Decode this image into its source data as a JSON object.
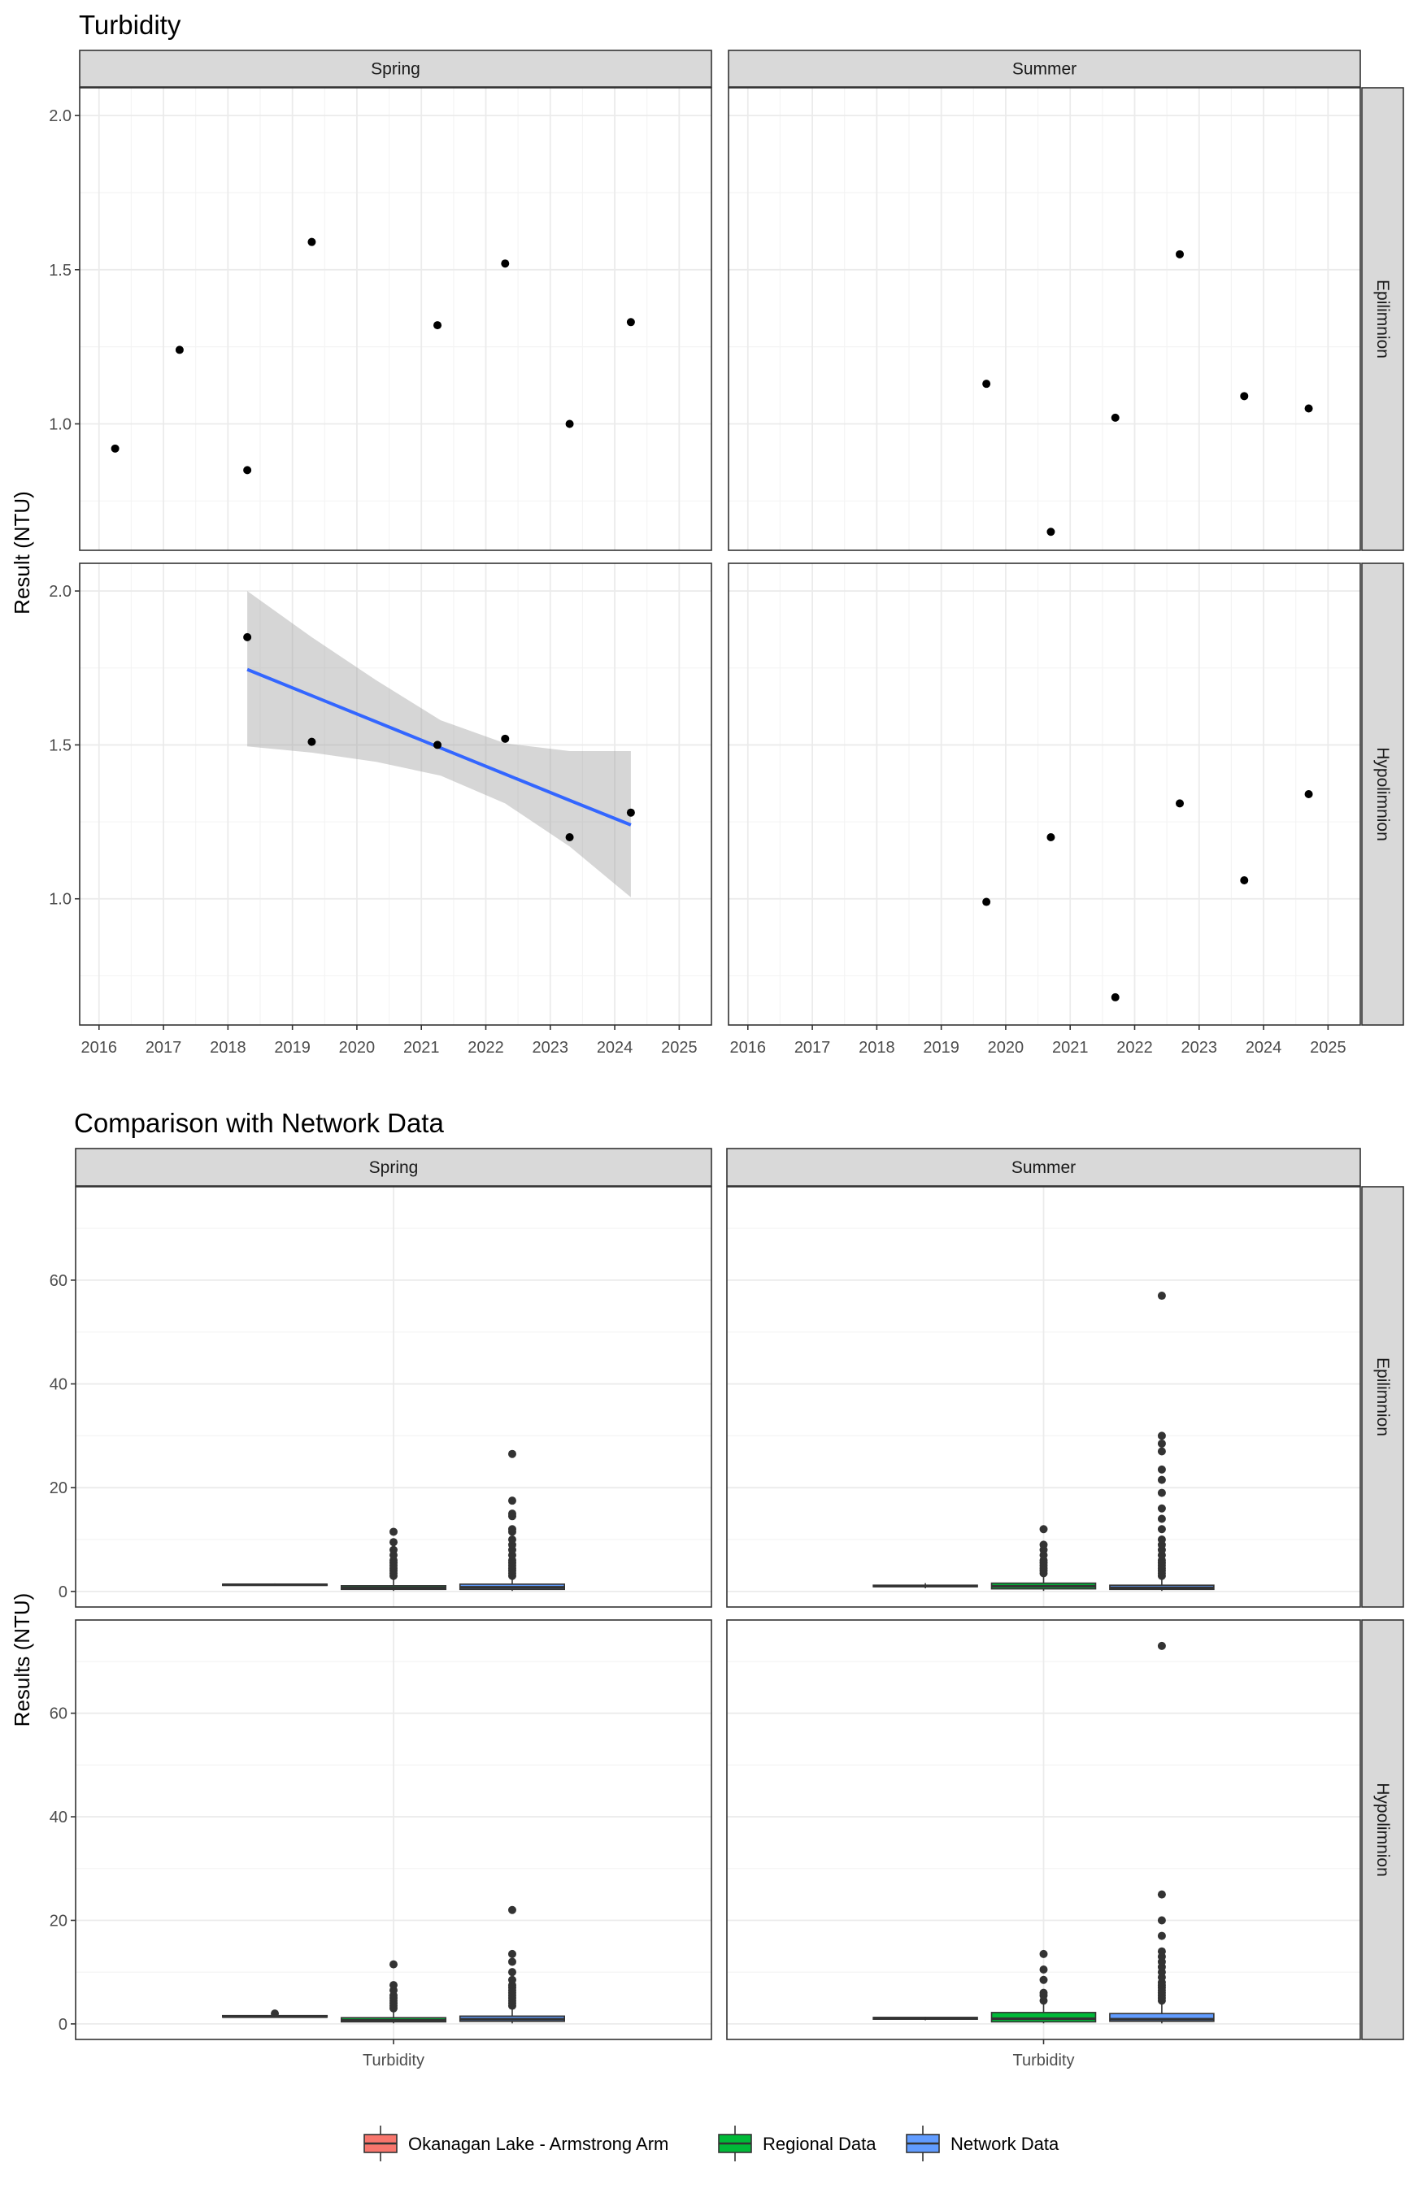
{
  "chart_data": [
    {
      "type": "scatter",
      "title": "Turbidity",
      "ylabel": "Result (NTU)",
      "xlabel": "",
      "x_range": [
        2015.7,
        2025.5
      ],
      "x_ticks": [
        2016,
        2017,
        2018,
        2019,
        2020,
        2021,
        2022,
        2023,
        2024,
        2025
      ],
      "x_tick_labels": [
        "2016",
        "2017",
        "2018",
        "2019",
        "2020",
        "2021",
        "2022",
        "2023",
        "2024",
        "2025"
      ],
      "y_range": [
        0.59,
        2.09
      ],
      "y_ticks": [
        1.0,
        1.5,
        2.0
      ],
      "y_tick_labels": [
        "1.0",
        "1.5",
        "2.0"
      ],
      "grid": true,
      "column_facets": [
        "Spring",
        "Summer"
      ],
      "row_facets": [
        "Epilimnion",
        "Hypolimnion"
      ],
      "panels": [
        {
          "column": "Spring",
          "row": "Epilimnion",
          "points": [
            [
              2016.25,
              0.92
            ],
            [
              2017.25,
              1.24
            ],
            [
              2018.3,
              0.85
            ],
            [
              2019.3,
              1.59
            ],
            [
              2021.25,
              1.32
            ],
            [
              2022.3,
              1.52
            ],
            [
              2023.3,
              1.0
            ],
            [
              2024.25,
              1.33
            ]
          ]
        },
        {
          "column": "Summer",
          "row": "Epilimnion",
          "points": [
            [
              2019.7,
              1.13
            ],
            [
              2020.7,
              0.65
            ],
            [
              2021.7,
              1.02
            ],
            [
              2022.7,
              1.55
            ],
            [
              2023.7,
              1.09
            ],
            [
              2024.7,
              1.05
            ]
          ]
        },
        {
          "column": "Spring",
          "row": "Hypolimnion",
          "points": [
            [
              2018.3,
              1.85
            ],
            [
              2019.3,
              1.51
            ],
            [
              2021.25,
              1.5
            ],
            [
              2022.3,
              1.52
            ],
            [
              2023.3,
              1.2
            ],
            [
              2024.25,
              1.28
            ]
          ],
          "trend": {
            "x": [
              2018.3,
              2019.3,
              2020.3,
              2021.3,
              2022.3,
              2023.3,
              2024.25
            ],
            "fit": [
              1.745,
              1.66,
              1.575,
              1.49,
              1.405,
              1.32,
              1.24
            ],
            "lower": [
              1.495,
              1.475,
              1.445,
              1.4,
              1.31,
              1.17,
              1.005
            ],
            "upper": [
              2.0,
              1.85,
              1.71,
              1.58,
              1.505,
              1.48,
              1.48
            ]
          }
        },
        {
          "column": "Summer",
          "row": "Hypolimnion",
          "points": [
            [
              2019.7,
              0.99
            ],
            [
              2020.7,
              1.2
            ],
            [
              2021.7,
              0.68
            ],
            [
              2022.7,
              1.31
            ],
            [
              2023.7,
              1.06
            ],
            [
              2024.7,
              1.34
            ]
          ]
        }
      ]
    },
    {
      "type": "box",
      "title": "Comparison with Network Data",
      "ylabel": "Results (NTU)",
      "xlabel": "",
      "categories": [
        "Turbidity"
      ],
      "y_range": [
        -3,
        78
      ],
      "y_ticks": [
        0,
        20,
        40,
        60
      ],
      "y_tick_labels": [
        "0",
        "20",
        "40",
        "60"
      ],
      "grid": true,
      "column_facets": [
        "Spring",
        "Summer"
      ],
      "row_facets": [
        "Epilimnion",
        "Hypolimnion"
      ],
      "legend": {
        "position": "bottom",
        "entries": [
          {
            "label": "Okanagan Lake - Armstrong Arm",
            "color": "#F8766D"
          },
          {
            "label": "Regional Data",
            "color": "#00BA38"
          },
          {
            "label": "Network Data",
            "color": "#619CFF"
          }
        ]
      },
      "panels": [
        {
          "column": "Spring",
          "row": "Epilimnion",
          "boxes": [
            {
              "group": "Okanagan Lake - Armstrong Arm",
              "min": 1.1,
              "q1": 1.2,
              "median": 1.3,
              "q3": 1.4,
              "max": 1.55,
              "outliers": []
            },
            {
              "group": "Regional Data",
              "min": 0.1,
              "q1": 0.4,
              "median": 0.7,
              "q3": 1.1,
              "max": 2.5,
              "outliers": [
                3,
                3.5,
                4,
                4.5,
                5,
                5.5,
                6,
                7,
                8,
                9.5,
                11.5
              ]
            },
            {
              "group": "Network Data",
              "min": 0.1,
              "q1": 0.4,
              "median": 0.8,
              "q3": 1.4,
              "max": 2.8,
              "outliers": [
                3,
                3.5,
                4,
                4.5,
                5,
                5.5,
                6,
                7,
                8,
                9,
                10,
                11.5,
                12,
                14.5,
                15,
                17.5,
                26.5
              ]
            }
          ]
        },
        {
          "column": "Summer",
          "row": "Epilimnion",
          "boxes": [
            {
              "group": "Okanagan Lake - Armstrong Arm",
              "min": 0.6,
              "q1": 0.9,
              "median": 1.05,
              "q3": 1.2,
              "max": 1.6,
              "outliers": []
            },
            {
              "group": "Regional Data",
              "min": 0.1,
              "q1": 0.5,
              "median": 1.0,
              "q3": 1.6,
              "max": 3.0,
              "outliers": [
                3.5,
                4,
                4.5,
                5,
                5.5,
                6,
                7,
                8,
                9,
                12
              ]
            },
            {
              "group": "Network Data",
              "min": 0.1,
              "q1": 0.4,
              "median": 0.7,
              "q3": 1.2,
              "max": 2.5,
              "outliers": [
                3,
                3.5,
                4,
                4.5,
                5,
                5.5,
                6,
                7,
                8,
                9,
                10,
                12,
                14,
                16,
                19,
                21.5,
                23.5,
                27,
                28.5,
                30,
                57
              ]
            }
          ]
        },
        {
          "column": "Spring",
          "row": "Hypolimnion",
          "boxes": [
            {
              "group": "Okanagan Lake - Armstrong Arm",
              "min": 1.2,
              "q1": 1.3,
              "median": 1.4,
              "q3": 1.6,
              "max": 1.85,
              "outliers": [
                2.0
              ]
            },
            {
              "group": "Regional Data",
              "min": 0.1,
              "q1": 0.4,
              "median": 0.7,
              "q3": 1.2,
              "max": 2.5,
              "outliers": [
                3,
                3.5,
                4,
                4.5,
                5,
                5.5,
                6.5,
                7.5,
                11.5
              ]
            },
            {
              "group": "Network Data",
              "min": 0.1,
              "q1": 0.5,
              "median": 0.9,
              "q3": 1.5,
              "max": 3.0,
              "outliers": [
                3.5,
                4,
                4.5,
                5,
                5.5,
                6,
                6.5,
                7,
                7.5,
                8.5,
                10,
                12,
                13.5,
                22
              ]
            }
          ]
        },
        {
          "column": "Summer",
          "row": "Hypolimnion",
          "boxes": [
            {
              "group": "Okanagan Lake - Armstrong Arm",
              "min": 0.7,
              "q1": 0.9,
              "median": 1.1,
              "q3": 1.25,
              "max": 1.35,
              "outliers": []
            },
            {
              "group": "Regional Data",
              "min": 0.1,
              "q1": 0.4,
              "median": 1.0,
              "q3": 2.2,
              "max": 4.0,
              "outliers": [
                4.5,
                5.5,
                6,
                8.5,
                10.5,
                13.5
              ]
            },
            {
              "group": "Network Data",
              "min": 0.1,
              "q1": 0.5,
              "median": 0.9,
              "q3": 2.0,
              "max": 4.0,
              "outliers": [
                4.5,
                5,
                5.5,
                6,
                6.5,
                7,
                7.5,
                8,
                9,
                10,
                11,
                12,
                13,
                14,
                17,
                20,
                25,
                73
              ]
            }
          ]
        }
      ]
    }
  ]
}
